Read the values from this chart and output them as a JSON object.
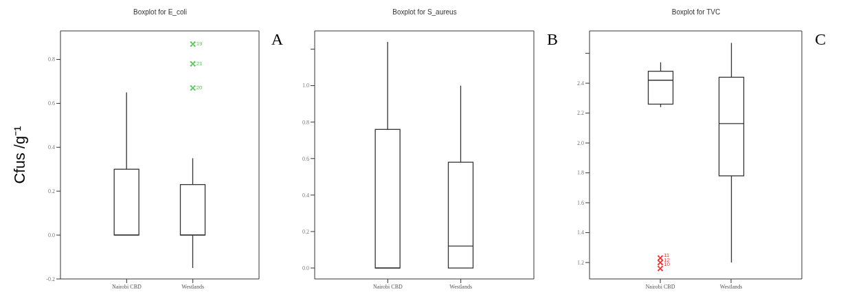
{
  "chart_data": [
    {
      "type": "box",
      "title": "Boxplot for E_coli",
      "ylabel": "Cfus /g⁻¹",
      "categories": [
        "Nairobi CBD",
        "Westlands"
      ],
      "ylim": [
        -0.2,
        0.93
      ],
      "yticks": [
        -0.2,
        {
          "value": 0,
          "label": "0.0"
        },
        0.2,
        0.4,
        0.6,
        0.8
      ],
      "grid": false,
      "marker": "cross",
      "series": [
        {
          "color": "#333333",
          "boxes": [
            {
              "low": 0,
              "q1": 0,
              "median": 0,
              "q3": 0.3,
              "high": 0.65
            },
            {
              "low": -0.15,
              "q1": 0,
              "median": 0,
              "q3": 0.23,
              "high": 0.35
            }
          ]
        },
        {
          "type": "scatter",
          "color": "#55cc55",
          "x": [
            "Westlands",
            "Westlands",
            "Westlands"
          ],
          "values": [
            0.87,
            0.78,
            0.67
          ]
        }
      ],
      "annotations": [
        "A",
        {
          "text": "19",
          "x": "Westlands",
          "y": 0.87
        },
        {
          "text": "21",
          "x": "Westlands",
          "y": 0.78
        },
        {
          "text": "20",
          "x": "Westlands",
          "y": 0.67
        }
      ]
    },
    {
      "type": "box",
      "title": "Boxplot for S_aureus",
      "categories": [
        "Nairobi CBD",
        "Westlands"
      ],
      "ylim": [
        -0.06,
        1.3
      ],
      "yticks": [
        {
          "value": 0,
          "label": "0.0"
        },
        0.2,
        0.4,
        0.6,
        0.8,
        {
          "value": 1,
          "label": "1.0"
        },
        {
          "value": 1.2,
          "label": null
        }
      ],
      "grid": false,
      "series": [
        {
          "color": "#333333",
          "boxes": [
            {
              "low": 0,
              "q1": 0,
              "median": 0,
              "q3": 0.76,
              "high": 1.24
            },
            {
              "low": 0,
              "q1": 0,
              "median": 0.12,
              "q3": 0.58,
              "high": 1.0
            }
          ]
        }
      ],
      "annotations": [
        "B"
      ]
    },
    {
      "type": "box",
      "title": "Boxplot for TVC",
      "categories": [
        "Nairobi CBD",
        "Westlands"
      ],
      "ylim": [
        1.09,
        2.75
      ],
      "yticks": [
        1.2,
        1.4,
        1.6,
        1.8,
        {
          "value": 2,
          "label": "2.0"
        },
        2.2,
        2.4,
        {
          "value": 2.6,
          "label": null
        }
      ],
      "grid": false,
      "marker": "cross",
      "series": [
        {
          "color": "#333333",
          "boxes": [
            {
              "low": 2.24,
              "q1": 2.26,
              "median": 2.42,
              "q3": 2.48,
              "high": 2.54
            },
            {
              "low": 1.2,
              "q1": 1.78,
              "median": 2.13,
              "q3": 2.44,
              "high": 2.67
            }
          ]
        },
        {
          "type": "scatter",
          "color": "#ee3333",
          "x": [
            "Nairobi CBD",
            "Nairobi CBD",
            "Nairobi CBD"
          ],
          "values": [
            1.23,
            1.2,
            1.16
          ]
        }
      ],
      "annotations": [
        "C",
        {
          "text": "11",
          "x": "Nairobi CBD",
          "y": 1.245
        },
        {
          "text": "12",
          "x": "Nairobi CBD",
          "y": 1.215
        },
        {
          "text": "10",
          "x": "Nairobi CBD",
          "y": 1.185
        }
      ]
    }
  ]
}
